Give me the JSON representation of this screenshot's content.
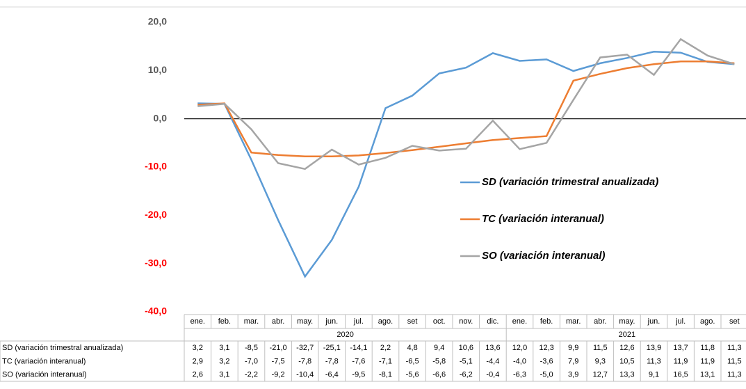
{
  "chart_data": {
    "type": "line",
    "categories": [
      "ene.",
      "feb.",
      "mar.",
      "abr.",
      "may.",
      "jun.",
      "jul.",
      "ago.",
      "set",
      "oct.",
      "nov.",
      "dic.",
      "ene.",
      "feb.",
      "mar.",
      "abr.",
      "may.",
      "jun.",
      "jul.",
      "ago.",
      "set"
    ],
    "x_groups": [
      {
        "label": "2020",
        "count": 12
      },
      {
        "label": "2021",
        "count": 9
      }
    ],
    "ylim": [
      -40,
      20
    ],
    "yticks": [
      {
        "value": -40,
        "label": "-40,0"
      },
      {
        "value": -30,
        "label": "-30,0"
      },
      {
        "value": -20,
        "label": "-20,0"
      },
      {
        "value": -10,
        "label": "-10,0"
      },
      {
        "value": 0,
        "label": "0,0"
      },
      {
        "value": 10,
        "label": "10,0"
      },
      {
        "value": 20,
        "label": "20,0"
      }
    ],
    "negative_tick_color": "#ff0000",
    "legend": "center-right",
    "series": [
      {
        "name": "SD (variación trimestral anualizada)",
        "color": "#5b9bd5",
        "values": [
          3.2,
          3.1,
          -8.5,
          -21.0,
          -32.7,
          -25.1,
          -14.1,
          2.2,
          4.8,
          9.4,
          10.6,
          13.6,
          12.0,
          12.3,
          9.9,
          11.5,
          12.6,
          13.9,
          13.7,
          11.8,
          11.3
        ],
        "value_labels": [
          "3,2",
          "3,1",
          "-8,5",
          "-21,0",
          "-32,7",
          "-25,1",
          "-14,1",
          "2,2",
          "4,8",
          "9,4",
          "10,6",
          "13,6",
          "12,0",
          "12,3",
          "9,9",
          "11,5",
          "12,6",
          "13,9",
          "13,7",
          "11,8",
          "11,3"
        ]
      },
      {
        "name": "TC (variación interanual)",
        "color": "#ed7d31",
        "values": [
          2.9,
          3.2,
          -7.0,
          -7.5,
          -7.8,
          -7.8,
          -7.6,
          -7.1,
          -6.5,
          -5.8,
          -5.1,
          -4.4,
          -4.0,
          -3.6,
          7.9,
          9.3,
          10.5,
          11.3,
          11.9,
          11.9,
          11.5
        ],
        "value_labels": [
          "2,9",
          "3,2",
          "-7,0",
          "-7,5",
          "-7,8",
          "-7,8",
          "-7,6",
          "-7,1",
          "-6,5",
          "-5,8",
          "-5,1",
          "-4,4",
          "-4,0",
          "-3,6",
          "7,9",
          "9,3",
          "10,5",
          "11,3",
          "11,9",
          "11,9",
          "11,5"
        ]
      },
      {
        "name": "SO (variación interanual)",
        "color": "#a5a5a5",
        "values": [
          2.6,
          3.1,
          -2.2,
          -9.2,
          -10.4,
          -6.4,
          -9.5,
          -8.1,
          -5.6,
          -6.6,
          -6.2,
          -0.4,
          -6.3,
          -5.0,
          3.9,
          12.7,
          13.3,
          9.1,
          16.5,
          13.1,
          11.3
        ],
        "value_labels": [
          "2,6",
          "3,1",
          "-2,2",
          "-9,2",
          "-10,4",
          "-6,4",
          "-9,5",
          "-8,1",
          "-5,6",
          "-6,6",
          "-6,2",
          "-0,4",
          "-6,3",
          "-5,0",
          "3,9",
          "12,7",
          "13,3",
          "9,1",
          "16,5",
          "13,1",
          "11,3"
        ]
      }
    ]
  }
}
